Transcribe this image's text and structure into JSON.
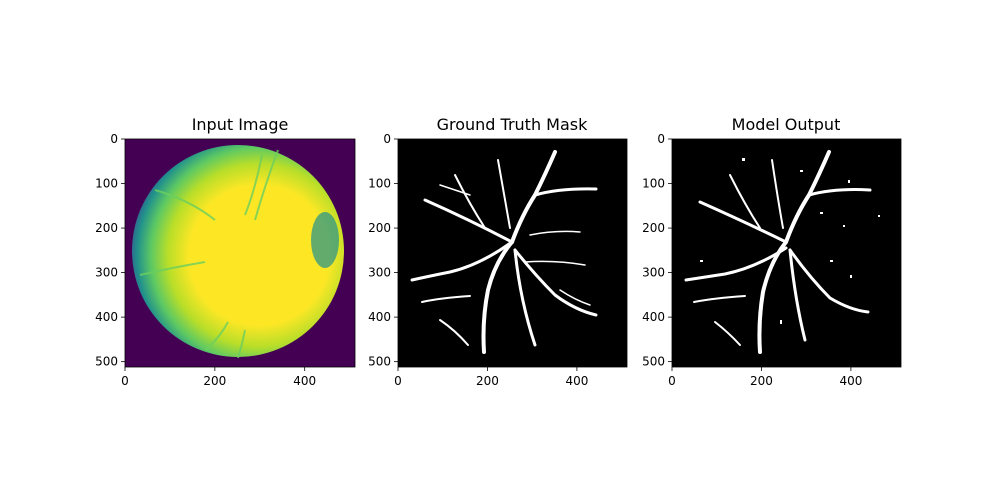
{
  "figure": {
    "panels": [
      {
        "title": "Input Image",
        "image": "retinal-fundus-viridis",
        "x_ticks": [
          "0",
          "200",
          "400"
        ],
        "y_ticks": [
          "0",
          "100",
          "200",
          "300",
          "400",
          "500"
        ]
      },
      {
        "title": "Ground Truth Mask",
        "image": "vessel-segmentation-mask",
        "x_ticks": [
          "0",
          "200",
          "400"
        ],
        "y_ticks": [
          "0",
          "100",
          "200",
          "300",
          "400",
          "500"
        ]
      },
      {
        "title": "Model Output",
        "image": "predicted-vessel-mask",
        "x_ticks": [
          "0",
          "200",
          "400"
        ],
        "y_ticks": [
          "0",
          "100",
          "200",
          "300",
          "400",
          "500"
        ]
      }
    ]
  },
  "colors": {
    "background_purple": "#440154",
    "fundus_teal": "#21918c",
    "fundus_green": "#5ec962",
    "fundus_yellow": "#fde725",
    "mask_black": "#000000",
    "vessel_white": "#ffffff"
  }
}
